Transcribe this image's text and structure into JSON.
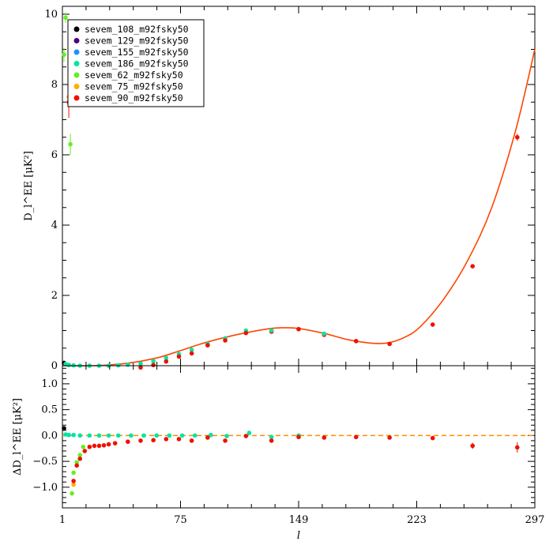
{
  "chart_data": [
    {
      "type": "scatter",
      "panel": "top",
      "ylabel": "D_l^EE [μK²]",
      "ylim": [
        0,
        10
      ],
      "xlim": [
        1,
        297
      ],
      "yticks": [
        0,
        2,
        4,
        6,
        8,
        10
      ],
      "ytick_labels": [
        "0",
        "2",
        "4",
        "6",
        "8",
        "10"
      ],
      "legend_position": "top-left",
      "model_curve": {
        "color": "#ff4500",
        "x": [
          1,
          20,
          40,
          60,
          75,
          90,
          110,
          130,
          140,
          149,
          165,
          180,
          195,
          205,
          215,
          225,
          240,
          255,
          270,
          285,
          297
        ],
        "y": [
          0.0,
          0.0,
          0.06,
          0.22,
          0.43,
          0.65,
          0.88,
          1.05,
          1.08,
          1.06,
          0.92,
          0.74,
          0.64,
          0.65,
          0.8,
          1.1,
          1.9,
          3.0,
          4.5,
          6.7,
          9.0
        ]
      },
      "series": [
        {
          "name": "sevem_108_m92fsky50",
          "color": "#000000"
        },
        {
          "name": "sevem_129_m92fsky50",
          "color": "#4b0082"
        },
        {
          "name": "sevem_155_m92fsky50",
          "color": "#1e90ff"
        },
        {
          "name": "sevem_186_m92fsky50",
          "color": "#00e5a0"
        },
        {
          "name": "sevem_62_m92fsky50",
          "color": "#66ee22"
        },
        {
          "name": "sevem_75_m92fsky50",
          "color": "#ffb000"
        },
        {
          "name": "sevem_90_m92fsky50",
          "color": "#ee1100"
        }
      ],
      "points": [
        {
          "s": 0,
          "x": 2,
          "y": 0.08
        },
        {
          "s": 4,
          "x": 3,
          "y": 9.9,
          "err": 0.15
        },
        {
          "s": 4,
          "x": 2,
          "y": 8.85,
          "err": 0.2
        },
        {
          "s": 6,
          "x": 5,
          "y": 7.5,
          "err": 0.45
        },
        {
          "s": 5,
          "x": 5,
          "y": 7.65,
          "err": 0.2
        },
        {
          "s": 4,
          "x": 6,
          "y": 6.3,
          "err": 0.3
        },
        {
          "s": 3,
          "x": 3,
          "y": 0.05
        },
        {
          "s": 3,
          "x": 5,
          "y": 0.02
        },
        {
          "s": 3,
          "x": 8,
          "y": 0.01
        },
        {
          "s": 3,
          "x": 12,
          "y": 0.0
        },
        {
          "s": 3,
          "x": 18,
          "y": 0.0
        },
        {
          "s": 3,
          "x": 24,
          "y": 0.0
        },
        {
          "s": 3,
          "x": 30,
          "y": 0.0
        },
        {
          "s": 3,
          "x": 36,
          "y": 0.01
        },
        {
          "s": 3,
          "x": 42,
          "y": 0.03
        },
        {
          "s": 3,
          "x": 50,
          "y": 0.06
        },
        {
          "s": 3,
          "x": 58,
          "y": 0.13
        },
        {
          "s": 3,
          "x": 66,
          "y": 0.22
        },
        {
          "s": 3,
          "x": 74,
          "y": 0.33
        },
        {
          "s": 3,
          "x": 82,
          "y": 0.45
        },
        {
          "s": 3,
          "x": 92,
          "y": 0.62
        },
        {
          "s": 3,
          "x": 103,
          "y": 0.78
        },
        {
          "s": 3,
          "x": 116,
          "y": 1.0
        },
        {
          "s": 6,
          "x": 50,
          "y": -0.05
        },
        {
          "s": 6,
          "x": 58,
          "y": 0.02
        },
        {
          "s": 6,
          "x": 66,
          "y": 0.12
        },
        {
          "s": 6,
          "x": 74,
          "y": 0.26
        },
        {
          "s": 6,
          "x": 82,
          "y": 0.35
        },
        {
          "s": 6,
          "x": 92,
          "y": 0.58
        },
        {
          "s": 6,
          "x": 103,
          "y": 0.72
        },
        {
          "s": 6,
          "x": 116,
          "y": 0.93
        },
        {
          "s": 6,
          "x": 132,
          "y": 0.97
        },
        {
          "s": 3,
          "x": 132,
          "y": 1.0
        },
        {
          "s": 6,
          "x": 149,
          "y": 1.04
        },
        {
          "s": 6,
          "x": 165,
          "y": 0.88
        },
        {
          "s": 3,
          "x": 165,
          "y": 0.91
        },
        {
          "s": 6,
          "x": 185,
          "y": 0.7
        },
        {
          "s": 6,
          "x": 206,
          "y": 0.62
        },
        {
          "s": 6,
          "x": 233,
          "y": 1.17
        },
        {
          "s": 6,
          "x": 258,
          "y": 2.83
        },
        {
          "s": 6,
          "x": 286,
          "y": 6.5,
          "err": 0.1
        }
      ]
    },
    {
      "type": "scatter",
      "panel": "bottom",
      "xlabel": "l",
      "ylabel": "ΔD_l^EE [μK²]",
      "ylim": [
        -1.4,
        1.35
      ],
      "xlim": [
        1,
        297
      ],
      "xticks": [
        1,
        75,
        149,
        223,
        297
      ],
      "xtick_labels": [
        "1",
        "75",
        "149",
        "223",
        "297"
      ],
      "yticks": [
        -1.0,
        -0.5,
        0.0,
        0.5,
        1.0
      ],
      "ytick_labels": [
        "−1.0",
        "−0.5",
        "0.0",
        "0.5",
        "1.0"
      ],
      "zero_line": {
        "y": 0.0,
        "style": "dashed",
        "color": "#ff8c00"
      },
      "points": [
        {
          "s": 0,
          "x": 2,
          "y": 0.14
        },
        {
          "s": 3,
          "x": 3,
          "y": 0.02
        },
        {
          "s": 3,
          "x": 5,
          "y": 0.01
        },
        {
          "s": 3,
          "x": 8,
          "y": 0.01
        },
        {
          "s": 3,
          "x": 12,
          "y": 0.0
        },
        {
          "s": 3,
          "x": 18,
          "y": 0.0
        },
        {
          "s": 3,
          "x": 24,
          "y": 0.0
        },
        {
          "s": 3,
          "x": 30,
          "y": 0.0
        },
        {
          "s": 3,
          "x": 36,
          "y": 0.0
        },
        {
          "s": 3,
          "x": 44,
          "y": 0.0
        },
        {
          "s": 3,
          "x": 52,
          "y": 0.0
        },
        {
          "s": 3,
          "x": 60,
          "y": 0.0
        },
        {
          "s": 3,
          "x": 68,
          "y": 0.0
        },
        {
          "s": 3,
          "x": 76,
          "y": 0.0
        },
        {
          "s": 3,
          "x": 84,
          "y": 0.0
        },
        {
          "s": 3,
          "x": 94,
          "y": 0.01
        },
        {
          "s": 3,
          "x": 104,
          "y": -0.01
        },
        {
          "s": 3,
          "x": 118,
          "y": 0.05
        },
        {
          "s": 3,
          "x": 132,
          "y": -0.03
        },
        {
          "s": 3,
          "x": 149,
          "y": 0.0
        },
        {
          "s": 4,
          "x": 7,
          "y": -1.12
        },
        {
          "s": 4,
          "x": 8,
          "y": -0.72
        },
        {
          "s": 4,
          "x": 10,
          "y": -0.52
        },
        {
          "s": 4,
          "x": 12,
          "y": -0.38
        },
        {
          "s": 4,
          "x": 14,
          "y": -0.22
        },
        {
          "s": 5,
          "x": 8,
          "y": -0.95
        },
        {
          "s": 6,
          "x": 8,
          "y": -0.88
        },
        {
          "s": 6,
          "x": 10,
          "y": -0.58
        },
        {
          "s": 6,
          "x": 12,
          "y": -0.45
        },
        {
          "s": 6,
          "x": 15,
          "y": -0.3
        },
        {
          "s": 6,
          "x": 18,
          "y": -0.22
        },
        {
          "s": 6,
          "x": 21,
          "y": -0.2
        },
        {
          "s": 6,
          "x": 24,
          "y": -0.2
        },
        {
          "s": 6,
          "x": 27,
          "y": -0.19
        },
        {
          "s": 6,
          "x": 30,
          "y": -0.17
        },
        {
          "s": 6,
          "x": 34,
          "y": -0.15
        },
        {
          "s": 6,
          "x": 42,
          "y": -0.12
        },
        {
          "s": 6,
          "x": 50,
          "y": -0.1
        },
        {
          "s": 6,
          "x": 58,
          "y": -0.09
        },
        {
          "s": 6,
          "x": 66,
          "y": -0.07
        },
        {
          "s": 6,
          "x": 74,
          "y": -0.07
        },
        {
          "s": 6,
          "x": 82,
          "y": -0.1
        },
        {
          "s": 6,
          "x": 92,
          "y": -0.04
        },
        {
          "s": 6,
          "x": 103,
          "y": -0.1
        },
        {
          "s": 6,
          "x": 116,
          "y": -0.01
        },
        {
          "s": 6,
          "x": 132,
          "y": -0.1
        },
        {
          "s": 6,
          "x": 149,
          "y": -0.03
        },
        {
          "s": 6,
          "x": 165,
          "y": -0.04
        },
        {
          "s": 6,
          "x": 185,
          "y": -0.03
        },
        {
          "s": 6,
          "x": 206,
          "y": -0.04
        },
        {
          "s": 6,
          "x": 233,
          "y": -0.05
        },
        {
          "s": 6,
          "x": 258,
          "y": -0.2,
          "err": 0.06
        },
        {
          "s": 6,
          "x": 286,
          "y": -0.23,
          "err": 0.1
        }
      ]
    }
  ]
}
